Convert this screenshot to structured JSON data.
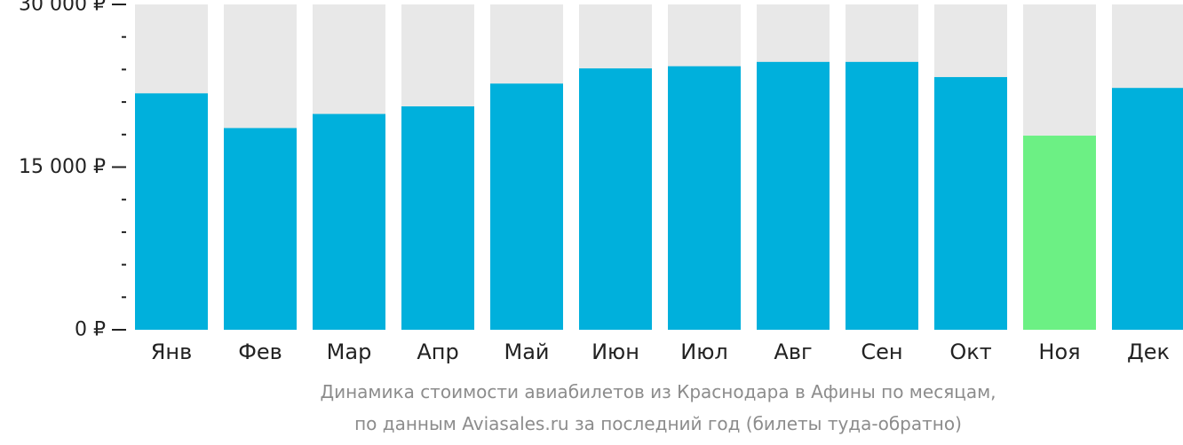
{
  "chart_data": {
    "type": "bar",
    "categories": [
      "Янв",
      "Фев",
      "Мар",
      "Апр",
      "Май",
      "Июн",
      "Июл",
      "Авг",
      "Сен",
      "Окт",
      "Ноя",
      "Дек"
    ],
    "values": [
      21800,
      18600,
      19900,
      20600,
      22700,
      24100,
      24300,
      24700,
      24700,
      23300,
      17900,
      22300
    ],
    "ylim": [
      0,
      30000
    ],
    "yticks": [
      {
        "value": 0,
        "label": "0 ₽"
      },
      {
        "value": 15000,
        "label": "15 000 ₽"
      },
      {
        "value": 30000,
        "label": "30 000 ₽"
      }
    ],
    "minor_ticks": [
      3000,
      6000,
      9000,
      12000,
      18000,
      21000,
      24000,
      27000
    ],
    "highlight_index": 10,
    "grid": false,
    "caption_line1": "Динамика стоимости авиабилетов из Краснодара в Афины по месяцам,",
    "caption_line2": "по данным Aviasales.ru за последний год (билеты туда-обратно)",
    "colors": {
      "bar": "#00b0dc",
      "highlight": "#6cf084",
      "track": "#e8e8e8",
      "axis": "#222222"
    }
  }
}
